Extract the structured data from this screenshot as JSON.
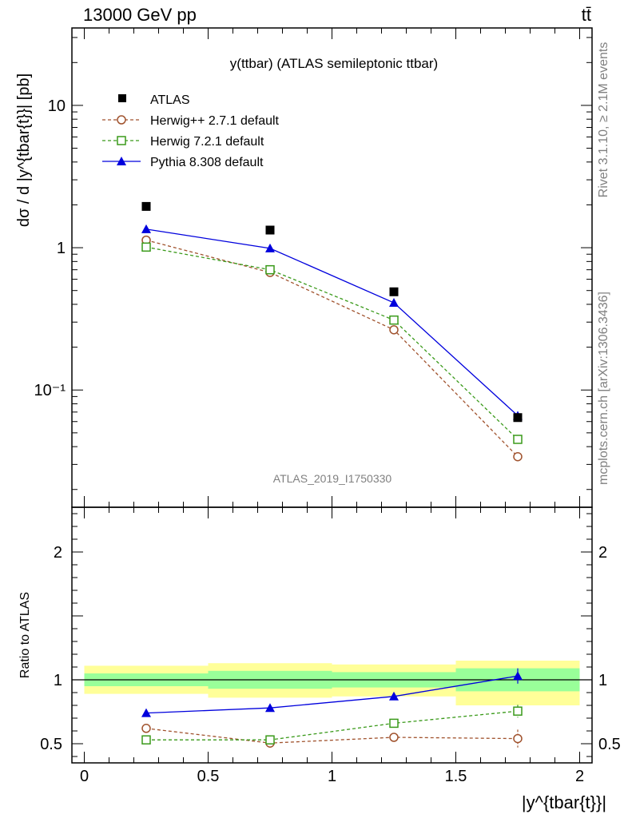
{
  "header": {
    "energy_label": "13000 GeV pp",
    "process_label": "tt̄"
  },
  "side_labels": {
    "rivet": "Rivet 3.1.10, ≥ 2.1M events",
    "mcplots": "mcplots.cern.ch [arXiv:1306.3436]"
  },
  "colors": {
    "atlas": "#000000",
    "herwigpp": "#a0522d",
    "herwig7": "#3a9a1a",
    "pythia": "#0000dd",
    "band_inner": "#99ff99",
    "band_outer": "#ffff99"
  },
  "chart_data": [
    {
      "type": "line",
      "title": "y(ttbar) (ATLAS semileptonic ttbar)",
      "ylabel": "dσ / d |y^{tbar{t}}| [pb]",
      "y_scale": "log",
      "ylim": [
        0.015,
        35
      ],
      "xlim": [
        -0.05,
        2.05
      ],
      "watermark": "ATLAS_2019_I1750330",
      "legend_position": "top-left",
      "yticks": [
        {
          "value": 10,
          "label": "10"
        },
        {
          "value": 1,
          "label": "1"
        },
        {
          "value": 0.1,
          "label": "10⁻¹"
        }
      ],
      "x": [
        0.25,
        0.75,
        1.25,
        1.75
      ],
      "series": [
        {
          "name": "ATLAS",
          "key": "atlas",
          "marker": "square-filled",
          "line": "none",
          "values": [
            1.95,
            1.33,
            0.49,
            0.064
          ]
        },
        {
          "name": "Herwig++ 2.7.1 default",
          "key": "herwigpp",
          "marker": "circle-open",
          "line": "dashed",
          "values": [
            1.13,
            0.67,
            0.265,
            0.034
          ]
        },
        {
          "name": "Herwig 7.2.1 default",
          "key": "herwig7",
          "marker": "square-open",
          "line": "dashed",
          "values": [
            1.01,
            0.7,
            0.31,
            0.045
          ]
        },
        {
          "name": "Pythia 8.308 default",
          "key": "pythia",
          "marker": "triangle-filled",
          "line": "solid",
          "values": [
            1.35,
            0.99,
            0.41,
            0.066
          ]
        }
      ]
    },
    {
      "type": "line",
      "ylabel": "Ratio to ATLAS",
      "xlabel": "|y^{tbar{t}}|",
      "ylim": [
        0.35,
        2.35
      ],
      "xlim": [
        -0.05,
        2.05
      ],
      "yticks": [
        {
          "value": 0.5,
          "label": "0.5"
        },
        {
          "value": 1,
          "label": "1"
        },
        {
          "value": 2,
          "label": "2"
        }
      ],
      "xticks": [
        {
          "value": 0,
          "label": "0"
        },
        {
          "value": 0.5,
          "label": "0.5"
        },
        {
          "value": 1,
          "label": "1"
        },
        {
          "value": 1.5,
          "label": "1.5"
        },
        {
          "value": 2,
          "label": "2"
        }
      ],
      "bands": [
        {
          "x0": 0,
          "x1": 0.5,
          "inner": [
            0.95,
            1.05
          ],
          "outer": [
            0.89,
            1.11
          ]
        },
        {
          "x0": 0.5,
          "x1": 1,
          "inner": [
            0.93,
            1.07
          ],
          "outer": [
            0.86,
            1.13
          ]
        },
        {
          "x0": 1,
          "x1": 1.5,
          "inner": [
            0.94,
            1.06
          ],
          "outer": [
            0.87,
            1.12
          ]
        },
        {
          "x0": 1.5,
          "x1": 2,
          "inner": [
            0.91,
            1.09
          ],
          "outer": [
            0.8,
            1.15
          ]
        }
      ],
      "x": [
        0.25,
        0.75,
        1.25,
        1.75
      ],
      "series": [
        {
          "name": "Herwig++ 2.7.1 default",
          "key": "herwigpp",
          "marker": "circle-open",
          "line": "dashed",
          "values": [
            0.62,
            0.505,
            0.55,
            0.54
          ],
          "errors": [
            0,
            0,
            0.02,
            0.07
          ]
        },
        {
          "name": "Herwig 7.2.1 default",
          "key": "herwig7",
          "marker": "square-open",
          "line": "dashed",
          "values": [
            0.53,
            0.53,
            0.66,
            0.755
          ],
          "errors": [
            0,
            0,
            0,
            0.05
          ]
        },
        {
          "name": "Pythia 8.308 default",
          "key": "pythia",
          "marker": "triangle-filled",
          "line": "solid",
          "values": [
            0.74,
            0.78,
            0.87,
            1.03
          ],
          "errors": [
            0,
            0,
            0.02,
            0.06
          ]
        }
      ]
    }
  ]
}
